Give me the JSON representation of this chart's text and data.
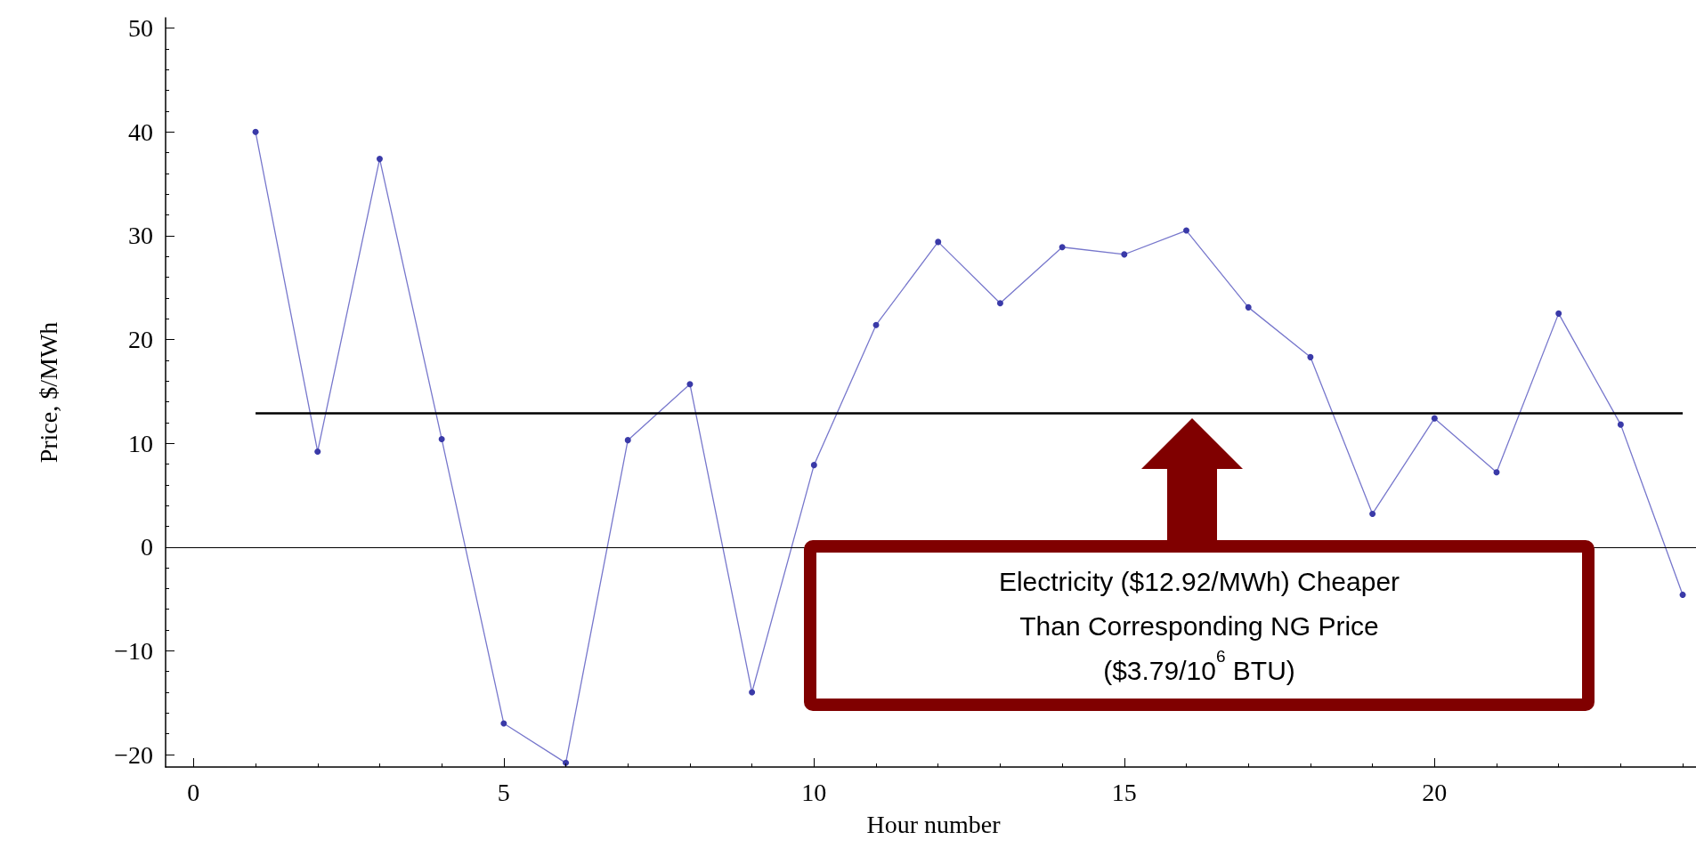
{
  "chart_data": {
    "type": "line",
    "xlabel": "Hour number",
    "ylabel": "Price, $/MWh",
    "x": [
      1,
      2,
      3,
      4,
      5,
      6,
      7,
      8,
      9,
      10,
      11,
      12,
      13,
      14,
      15,
      16,
      17,
      18,
      19,
      20,
      21,
      22,
      23,
      24
    ],
    "series": [
      {
        "color": "#7777cc",
        "values": [
          40,
          9.2,
          37.4,
          10.4,
          -17,
          -20.8,
          10.3,
          15.7,
          -14,
          7.9,
          21.4,
          29.4,
          23.5,
          28.9,
          28.2,
          30.5,
          23.1,
          18.3,
          3.2,
          12.4,
          7.2,
          22.5,
          11.8,
          -4.6
        ]
      }
    ],
    "marker": "circle",
    "xlim": [
      -0.45,
      24.3
    ],
    "xticks": [
      0,
      5,
      10,
      15,
      20
    ],
    "ylim": [
      -21.2,
      51
    ],
    "yticks": [
      -20,
      -10,
      0,
      10,
      20,
      30,
      40,
      50
    ],
    "ref_lines": [
      {
        "axis": "y",
        "value": 12.92,
        "color": "#000000"
      },
      {
        "axis": "y",
        "value": 0,
        "color": "#000000"
      }
    ],
    "annotations": [
      "Electricity ($12.92/MWh) Cheaper\nThan Corresponding NG Price\n($3.79/10$^{6}$ BTU)"
    ],
    "grid": false
  }
}
